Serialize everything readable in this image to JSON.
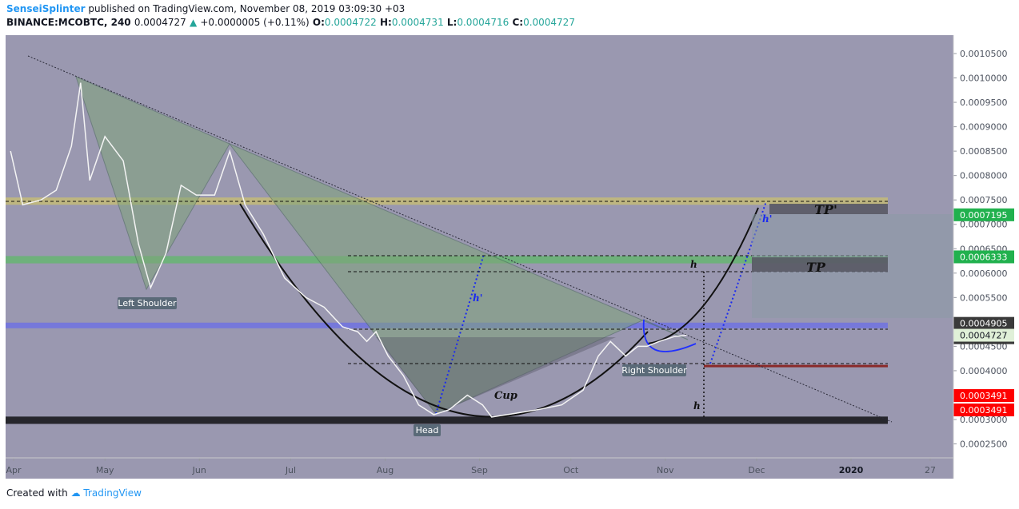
{
  "header": {
    "author": "SenseiSplinter",
    "published": "published on TradingView.com, November 08, 2019 03:09:30 +03",
    "symbol": "BINANCE:MCOBTC, 240",
    "last": "0.0004727",
    "change": "+0.0000005 (+0.11%)",
    "open_label": "O:",
    "open": "0.0004722",
    "high_label": "H:",
    "high": "0.0004731",
    "low_label": "L:",
    "low": "0.0004716",
    "close_label": "C:",
    "close": "0.0004727"
  },
  "footer": {
    "created_with": "Created with",
    "brand": "TradingView"
  },
  "colors": {
    "plot_bg": "#9a98b0",
    "axis_bg": "#ffffff",
    "yellow_zone": "#c9c070",
    "green_zone": "#5fb96a",
    "blue_zone": "#6a6ee8",
    "black_zone": "#202025",
    "red_line": "#8a2a2a",
    "price_green": "#21b14e",
    "price_red": "#ff0000",
    "price_current": "#e0f0d8"
  },
  "chart_data": {
    "type": "line",
    "title": "",
    "y_scale": "linear",
    "ylim": [
      0.00022,
      0.00107
    ],
    "y_ticks": [
      "0.0010500",
      "0.0010000",
      "0.0009500",
      "0.0009000",
      "0.0008500",
      "0.0008000",
      "0.0007500",
      "0.0007000",
      "0.0006500",
      "0.0006000",
      "0.0005500",
      "0.0005000",
      "0.0004500",
      "0.0004000",
      "0.0003500",
      "0.0003000",
      "0.0002500"
    ],
    "x_ticks": [
      {
        "label": "Apr",
        "x": "2019-04-01"
      },
      {
        "label": "May",
        "x": "2019-05-01"
      },
      {
        "label": "Jun",
        "x": "2019-06-01"
      },
      {
        "label": "Jul",
        "x": "2019-07-01"
      },
      {
        "label": "Aug",
        "x": "2019-08-01"
      },
      {
        "label": "Sep",
        "x": "2019-09-01"
      },
      {
        "label": "Oct",
        "x": "2019-10-01"
      },
      {
        "label": "Nov",
        "x": "2019-11-01"
      },
      {
        "label": "Dec",
        "x": "2019-12-01"
      },
      {
        "label": "2020",
        "x": "2020-01-01"
      },
      {
        "label": "27",
        "x": "2020-01-27"
      }
    ],
    "series": [
      {
        "values": [
          {
            "x": "2019-03-31",
            "y": 0.00085
          },
          {
            "x": "2019-04-04",
            "y": 0.00074
          },
          {
            "x": "2019-04-10",
            "y": 0.00075
          },
          {
            "x": "2019-04-15",
            "y": 0.00077
          },
          {
            "x": "2019-04-20",
            "y": 0.00086
          },
          {
            "x": "2019-04-23",
            "y": 0.00099
          },
          {
            "x": "2019-04-26",
            "y": 0.00079
          },
          {
            "x": "2019-05-01",
            "y": 0.00088
          },
          {
            "x": "2019-05-07",
            "y": 0.00083
          },
          {
            "x": "2019-05-12",
            "y": 0.00066
          },
          {
            "x": "2019-05-16",
            "y": 0.00057
          },
          {
            "x": "2019-05-21",
            "y": 0.00064
          },
          {
            "x": "2019-05-26",
            "y": 0.00078
          },
          {
            "x": "2019-05-31",
            "y": 0.00076
          },
          {
            "x": "2019-06-06",
            "y": 0.00076
          },
          {
            "x": "2019-06-11",
            "y": 0.00085
          },
          {
            "x": "2019-06-16",
            "y": 0.00074
          },
          {
            "x": "2019-06-22",
            "y": 0.00068
          },
          {
            "x": "2019-06-29",
            "y": 0.00059
          },
          {
            "x": "2019-07-06",
            "y": 0.00055
          },
          {
            "x": "2019-07-12",
            "y": 0.00053
          },
          {
            "x": "2019-07-18",
            "y": 0.00049
          },
          {
            "x": "2019-07-23",
            "y": 0.00048
          },
          {
            "x": "2019-07-26",
            "y": 0.00046
          },
          {
            "x": "2019-07-29",
            "y": 0.00048
          },
          {
            "x": "2019-08-02",
            "y": 0.00043
          },
          {
            "x": "2019-08-07",
            "y": 0.00039
          },
          {
            "x": "2019-08-12",
            "y": 0.00033
          },
          {
            "x": "2019-08-17",
            "y": 0.00031
          },
          {
            "x": "2019-08-22",
            "y": 0.00032
          },
          {
            "x": "2019-08-28",
            "y": 0.00035
          },
          {
            "x": "2019-09-02",
            "y": 0.00033
          },
          {
            "x": "2019-09-05",
            "y": 0.000305
          },
          {
            "x": "2019-09-10",
            "y": 0.00031
          },
          {
            "x": "2019-09-20",
            "y": 0.00032
          },
          {
            "x": "2019-09-28",
            "y": 0.00033
          },
          {
            "x": "2019-10-05",
            "y": 0.00036
          },
          {
            "x": "2019-10-10",
            "y": 0.00043
          },
          {
            "x": "2019-10-14",
            "y": 0.00046
          },
          {
            "x": "2019-10-19",
            "y": 0.00043
          },
          {
            "x": "2019-10-23",
            "y": 0.00045
          },
          {
            "x": "2019-10-26",
            "y": 0.00045
          },
          {
            "x": "2019-10-30",
            "y": 0.00046
          },
          {
            "x": "2019-11-04",
            "y": 0.00047
          },
          {
            "x": "2019-11-08",
            "y": 0.0004727
          }
        ]
      }
    ],
    "zones": [
      {
        "name": "yellow",
        "from": 0.00074,
        "to": 0.000755
      },
      {
        "name": "green",
        "from": 0.00062,
        "to": 0.000635
      },
      {
        "name": "blue",
        "from": 0.000487,
        "to": 0.0004985
      },
      {
        "name": "black",
        "from": 0.000291,
        "to": 0.000306
      }
    ],
    "annotations": {
      "left_shoulder": "Left Shoulder",
      "head": "Head",
      "right_shoulder": "Right Shoulder",
      "cup": "Cup",
      "tp": "TP",
      "tp_prime": "TP'",
      "h": "h",
      "h_prime": "h'"
    },
    "price_labels": [
      {
        "text": "0.0007195",
        "kind": "green",
        "value": 0.0007195
      },
      {
        "text": "0.0006333",
        "kind": "green",
        "value": 0.0006333
      },
      {
        "text": "0.0004905",
        "kind": "dark",
        "value": 0.0004905
      },
      {
        "text": "0.0004905",
        "kind": "dark",
        "value": 0.0004905
      },
      {
        "text": "0.0004727",
        "kind": "current",
        "value": 0.0004727
      },
      {
        "text": "0.0003491",
        "kind": "red",
        "value": 0.0003491
      },
      {
        "text": "0.0003491",
        "kind": "red",
        "value": 0.0003491
      }
    ]
  }
}
